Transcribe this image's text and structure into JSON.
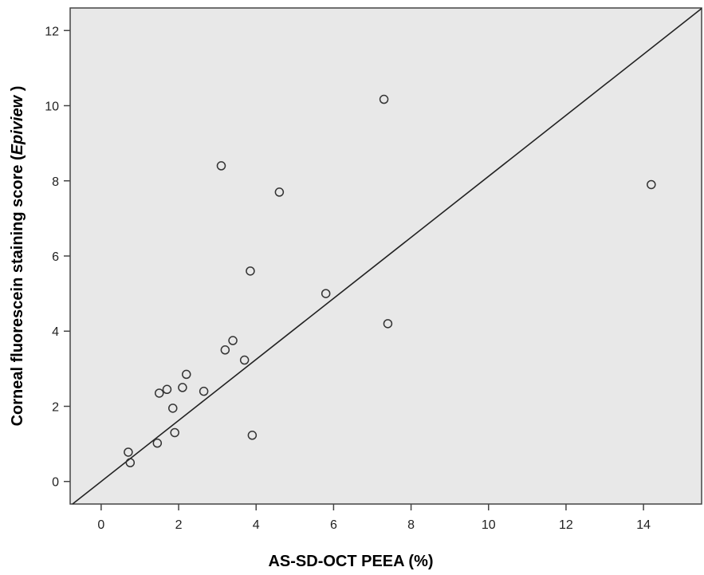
{
  "chart_data": {
    "type": "scatter",
    "title": "",
    "xlabel": "AS-SD-OCT PEEA (%)",
    "ylabel_main": "Corneal fluorescein staining score (",
    "ylabel_italic": "Epiview",
    "ylabel_end": " )",
    "xlim": [
      -0.8,
      15.5
    ],
    "ylim": [
      -0.6,
      12.6
    ],
    "xticks": [
      0,
      2,
      4,
      6,
      8,
      10,
      12,
      14
    ],
    "yticks": [
      0,
      2,
      4,
      6,
      8,
      10,
      12
    ],
    "xtick_labels": [
      "0",
      "2",
      "4",
      "6",
      "8",
      "10",
      "12",
      "14"
    ],
    "ytick_labels": [
      "0",
      "2",
      "4",
      "6",
      "8",
      "10",
      "12"
    ],
    "grid": false,
    "plot_background": "#e8e8e8",
    "marker_color": "#333333",
    "line_color": "#222222",
    "fit_line": {
      "slope": 0.812,
      "intercept": 0.0
    },
    "points": [
      {
        "x": 0.7,
        "y": 0.78
      },
      {
        "x": 0.75,
        "y": 0.5
      },
      {
        "x": 1.45,
        "y": 1.02
      },
      {
        "x": 1.5,
        "y": 2.35
      },
      {
        "x": 1.7,
        "y": 2.45
      },
      {
        "x": 1.85,
        "y": 1.95
      },
      {
        "x": 1.9,
        "y": 1.3
      },
      {
        "x": 2.1,
        "y": 2.5
      },
      {
        "x": 2.2,
        "y": 2.85
      },
      {
        "x": 2.65,
        "y": 2.4
      },
      {
        "x": 3.1,
        "y": 8.4
      },
      {
        "x": 3.2,
        "y": 3.5
      },
      {
        "x": 3.4,
        "y": 3.75
      },
      {
        "x": 3.7,
        "y": 3.23
      },
      {
        "x": 3.85,
        "y": 5.6
      },
      {
        "x": 3.9,
        "y": 1.23
      },
      {
        "x": 4.6,
        "y": 7.7
      },
      {
        "x": 5.8,
        "y": 5.0
      },
      {
        "x": 7.3,
        "y": 10.17
      },
      {
        "x": 7.4,
        "y": 4.2
      },
      {
        "x": 14.2,
        "y": 7.9
      }
    ]
  }
}
